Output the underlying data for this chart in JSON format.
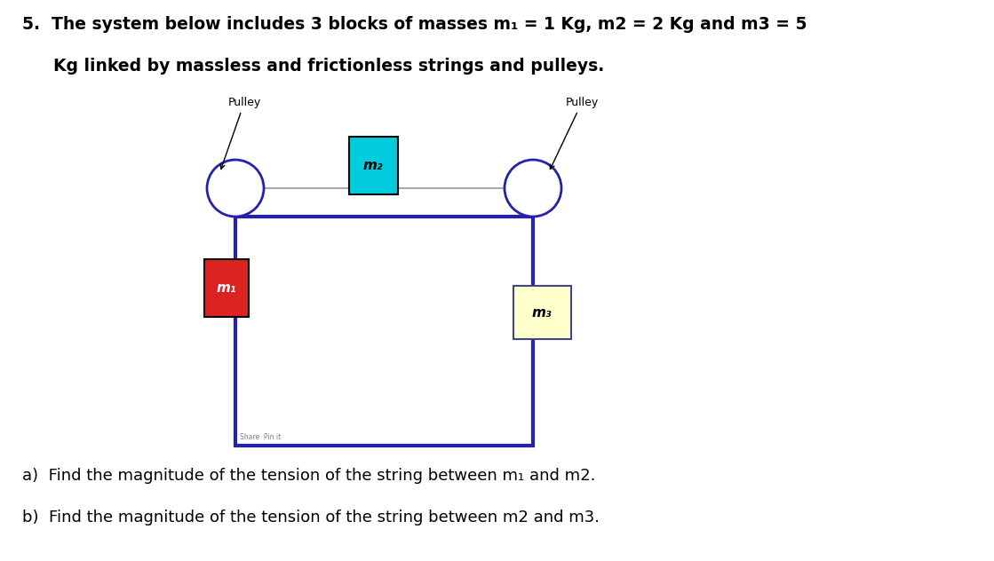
{
  "bg_color": "#ffffff",
  "box_color": "#2222aa",
  "rope_color": "#aaaaaa",
  "pulley_fill": "#ffffff",
  "pulley_edge": "#2222aa",
  "m1_fill": "#dd2222",
  "m1_edge": "#000000",
  "m2_fill": "#00ccdd",
  "m2_edge": "#000000",
  "m3_fill": "#ffffcc",
  "m3_edge": "#444488",
  "m1_label": "m₁",
  "m2_label": "m₂",
  "m3_label": "m₃",
  "pulley_label": "Pulley",
  "title_line1": "5.  The system below includes 3 blocks of masses m₁ = 1 Kg, m2 = 2 Kg and m3 = 5",
  "title_line2": "Kg linked by massless and frictionless strings and pulleys.",
  "question_a": "a)  Find the magnitude of the tension of the string between m₁ and m2.",
  "question_b": "b)  Find the magnitude of the tension of the string between m2 and m3.",
  "figw": 11.19,
  "figh": 6.32
}
